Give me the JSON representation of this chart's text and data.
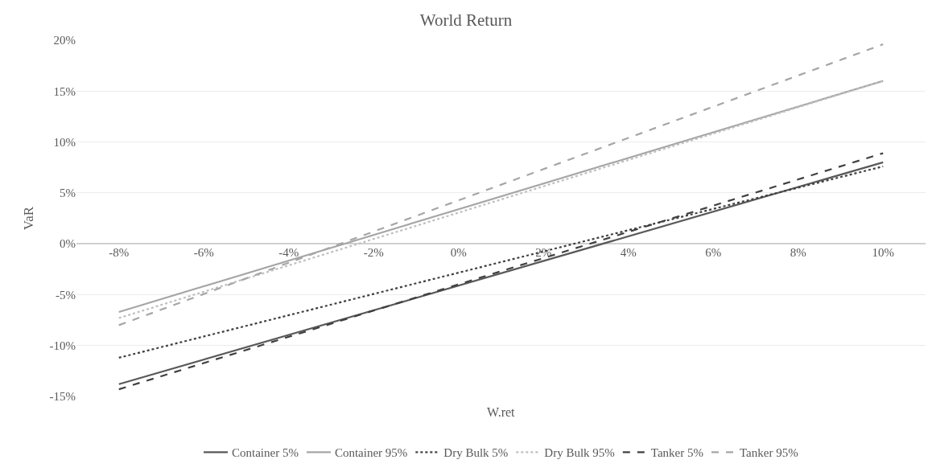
{
  "chart_data": {
    "type": "line",
    "title": "World Return",
    "xlabel": "W.ret",
    "ylabel": "VaR",
    "x": [
      -8,
      10
    ],
    "series": [
      {
        "name": "Container 5%",
        "color": "#595959",
        "line_style": "solid",
        "values": [
          -13.8,
          8.0
        ]
      },
      {
        "name": "Container 95%",
        "color": "#a6a6a6",
        "line_style": "solid",
        "values": [
          -6.7,
          16.0
        ]
      },
      {
        "name": "Dry Bulk 5%",
        "color": "#404040",
        "line_style": "dotted",
        "values": [
          -11.2,
          7.6
        ]
      },
      {
        "name": "Dry Bulk 95%",
        "color": "#bfbfbf",
        "line_style": "dotted",
        "values": [
          -7.3,
          16.0
        ]
      },
      {
        "name": "Tanker 5%",
        "color": "#404040",
        "line_style": "dashed",
        "values": [
          -14.3,
          8.9
        ]
      },
      {
        "name": "Tanker 95%",
        "color": "#a6a6a6",
        "line_style": "dashed",
        "values": [
          -8.0,
          19.6
        ]
      }
    ],
    "xlim": [
      -9,
      11
    ],
    "xticks": [
      {
        "value": -8,
        "label": "-8%"
      },
      {
        "value": -6,
        "label": "-6%"
      },
      {
        "value": -4,
        "label": "-4%"
      },
      {
        "value": -2,
        "label": "-2%"
      },
      {
        "value": 0,
        "label": "0%"
      },
      {
        "value": 2,
        "label": "2%"
      },
      {
        "value": 4,
        "label": "4%"
      },
      {
        "value": 6,
        "label": "6%"
      },
      {
        "value": 8,
        "label": "8%"
      },
      {
        "value": 10,
        "label": "10%"
      }
    ],
    "ylim": [
      -15,
      20
    ],
    "yticks": [
      {
        "value": -15,
        "label": "-15%"
      },
      {
        "value": -10,
        "label": "-10%"
      },
      {
        "value": -5,
        "label": "-5%"
      },
      {
        "value": 0,
        "label": "0%"
      },
      {
        "value": 5,
        "label": "5%"
      },
      {
        "value": 10,
        "label": "10%"
      },
      {
        "value": 15,
        "label": "15%"
      },
      {
        "value": 20,
        "label": "20%"
      }
    ],
    "grid": "y",
    "legend": "bottom",
    "marker": "none"
  }
}
